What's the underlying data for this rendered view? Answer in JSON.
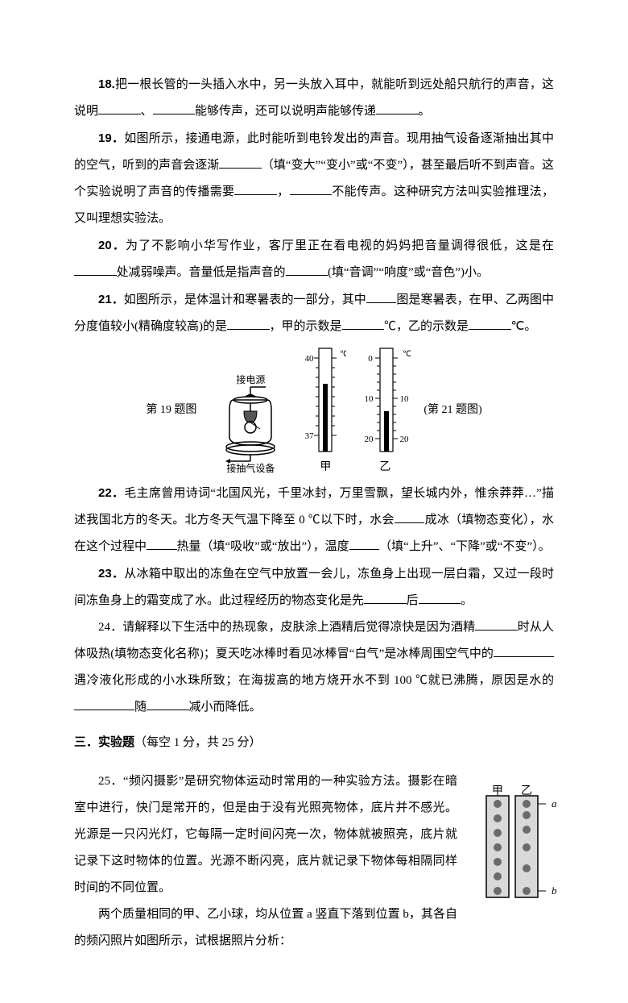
{
  "q18": {
    "num": "18.",
    "text_a": "把一根长管的一头插入水中，另一头放入耳中，就能听到远处船只航行的声音，这说明",
    "text_b": "、",
    "text_c": "能够传声，还可以说明声能够传递",
    "text_d": "。"
  },
  "q19": {
    "num": "19．",
    "text_a": "如图所示，接通电源，此时能听到电铃发出的声音。现用抽气设备逐渐抽出其中的空气，听到的声音会逐渐",
    "hint": "（填“变大”“变小”或“不变”）",
    "text_b": "，甚至最后听不到声音。这个实验说明了声音的传播需要",
    "text_c": "，",
    "text_d": "不能传声。这种研究方法叫实验推理法，又叫理想实验法。"
  },
  "q20": {
    "num": "20．",
    "text_a": "为了不影响小华写作业，客厅里正在看电视的妈妈把音量调得很低，这是在",
    "text_b": "处减弱噪声。音量低是指声音的",
    "hint": "(填“音调”“响度”或“音色”)",
    "text_c": "小。"
  },
  "q21": {
    "num": "21．",
    "text_a": "如图所示，是体温计和寒暑表的一部分，其中",
    "text_b": "图是寒暑表，在甲、乙两图中分度值较小(精确度较高)的是",
    "text_c": "，甲的示数是",
    "text_d": "℃，乙的示数是",
    "text_e": "℃。"
  },
  "figrow": {
    "cap19": "第 19 题图",
    "top_label": "接电源",
    "bot_label": "接抽气设备",
    "jia": "甲",
    "yi": "乙",
    "cap21": "(第 21 题图)",
    "thermo_jia_top": "40",
    "thermo_jia_bot": "37",
    "thermo_jia_topmark": "℃",
    "thermo_yi_top": "0",
    "thermo_yi_mid": "10",
    "thermo_yi_bot": "20",
    "thermo_yi_topmark": "℃"
  },
  "q22": {
    "num": "22．",
    "text_a": "毛主席曾用诗词“北国风光，千里冰封，万里雪飘，望长城内外，惟余莽莽…”描述我国北方的冬天。北方冬天气温下降至 0 ℃以下时，水会",
    "text_b": "成冰（填物态变化），水在这个过程中",
    "text_c": "热量（填“吸收”或“放出”），温度",
    "hint": "（填“上升”、“下降”或“不变”）。"
  },
  "q23": {
    "num": "23．",
    "text_a": "从冰箱中取出的冻鱼在空气中放置一会儿，冻鱼身上出现一层白霜，又过一段时间冻鱼身上的霜变成了水。此过程经历的物态变化是先",
    "text_b": "后",
    "text_c": "。"
  },
  "q24": {
    "num": "24．",
    "text_a": "请解释以下生活中的热现象，皮肤涂上酒精后觉得凉快是因为酒精",
    "text_b": "时从人体吸热(填物态变化名称)；夏天吃冰棒时看见冰棒冒“白气”是冰棒周围空气中的",
    "text_c": "遇冷液化形成的小水珠所致；在海拔高的地方烧开水不到 100 ℃就已沸腾，原因是水的",
    "text_d": "随",
    "text_e": "减小而降低。"
  },
  "section3": {
    "title": "三．实验题",
    "paren": "（每空 1 分，共 25 分）"
  },
  "q25": {
    "num": "25．",
    "text_a": "“频闪摄影”是研究物体运动时常用的一种实验方法。摄影在暗室中进行，快门是常开的，但是由于没有光照亮物体，底片并不感光。光源是一只闪光灯，它每隔一定时间闪亮一次，物体就被照亮，底片就记录下这时物体的位置。光源不断闪亮，底片就记录下物体每相隔同样时间的不同位置。",
    "text_b": "两个质量相同的甲、乙小球，均从位置 a 竖直下落到位置 b，其各自的频闪照片如图所示，试根据照片分析：",
    "fig_jia": "甲",
    "fig_yi": "乙",
    "mark_a": "a",
    "mark_b": "b",
    "jia_dots_y": [
      20,
      38,
      56,
      74,
      92,
      110,
      128
    ],
    "yi_dots_y": [
      20,
      34,
      52,
      74,
      100,
      128
    ],
    "dot_color": "#6b6b6b",
    "strip_bg": "#d9d9d9",
    "border_color": "#000000"
  }
}
